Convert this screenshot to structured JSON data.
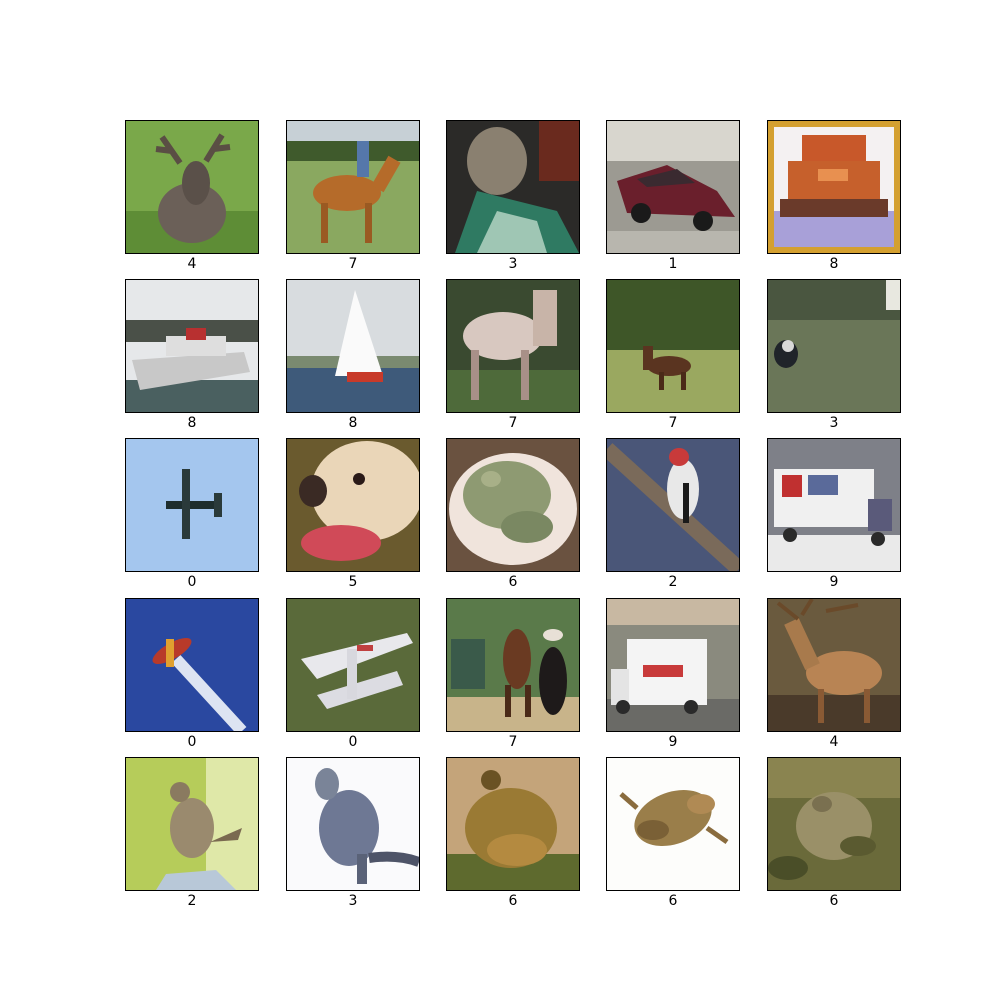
{
  "figure": {
    "cells": [
      {
        "label": "4",
        "subject": "deer-photo"
      },
      {
        "label": "7",
        "subject": "horse-photo"
      },
      {
        "label": "3",
        "subject": "cat-photo"
      },
      {
        "label": "1",
        "subject": "car-photo"
      },
      {
        "label": "8",
        "subject": "ship-photo"
      },
      {
        "label": "8",
        "subject": "ship-photo"
      },
      {
        "label": "8",
        "subject": "ship-photo"
      },
      {
        "label": "7",
        "subject": "horse-photo"
      },
      {
        "label": "7",
        "subject": "horse-photo"
      },
      {
        "label": "3",
        "subject": "cat-photo"
      },
      {
        "label": "0",
        "subject": "airplane-photo"
      },
      {
        "label": "5",
        "subject": "dog-photo"
      },
      {
        "label": "6",
        "subject": "frog-photo"
      },
      {
        "label": "2",
        "subject": "bird-photo"
      },
      {
        "label": "9",
        "subject": "truck-photo"
      },
      {
        "label": "0",
        "subject": "airplane-photo"
      },
      {
        "label": "0",
        "subject": "airplane-photo"
      },
      {
        "label": "7",
        "subject": "horse-photo"
      },
      {
        "label": "9",
        "subject": "truck-photo"
      },
      {
        "label": "4",
        "subject": "deer-photo"
      },
      {
        "label": "2",
        "subject": "bird-photo"
      },
      {
        "label": "3",
        "subject": "cat-photo"
      },
      {
        "label": "6",
        "subject": "frog-photo"
      },
      {
        "label": "6",
        "subject": "frog-photo"
      },
      {
        "label": "6",
        "subject": "frog-photo"
      }
    ]
  }
}
